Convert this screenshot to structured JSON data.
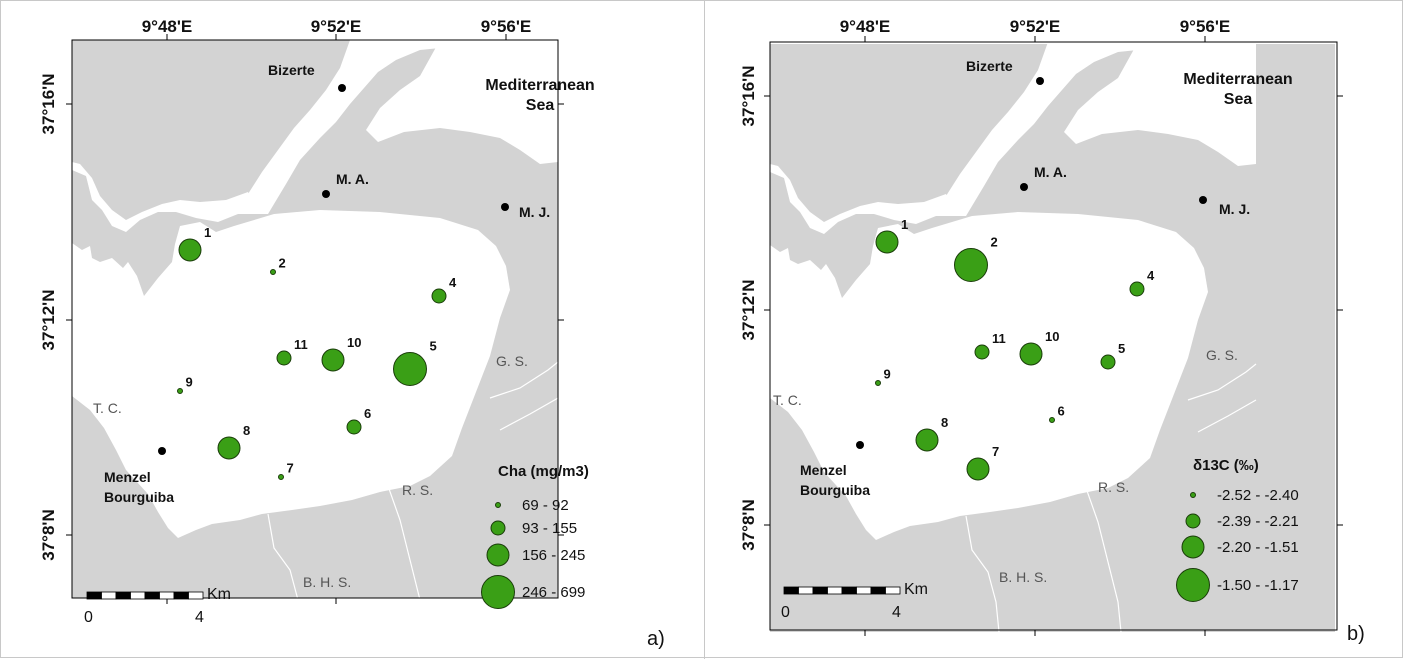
{
  "colors": {
    "land": "#d3d3d3",
    "water": "#ffffff",
    "circle_fill": "#3a9f16",
    "circle_stroke": "#1a3d0a",
    "town_dot": "#000000"
  },
  "panels": [
    {
      "id": "a",
      "panel_label": "a)",
      "lon_labels": [
        "9°48'E",
        "9°52'E",
        "9°56'E"
      ],
      "lat_labels": [
        "37°16'N",
        "37°12'N",
        "37°8'N"
      ],
      "places": [
        {
          "label": "Bizerte",
          "type": "town"
        },
        {
          "label": "M. A.",
          "type": "town"
        },
        {
          "label": "M. J.",
          "type": "town"
        },
        {
          "label": "Menzel\nBourguiba",
          "type": "town"
        },
        {
          "label": "Mediterranean\nSea",
          "type": "sea"
        },
        {
          "label": "G. S.",
          "type": "area"
        },
        {
          "label": "T. C.",
          "type": "area"
        },
        {
          "label": "R. S.",
          "type": "area"
        },
        {
          "label": "B. H. S.",
          "type": "area"
        }
      ],
      "stations": [
        {
          "id": "1",
          "class": 3
        },
        {
          "id": "2",
          "class": 1
        },
        {
          "id": "4",
          "class": 2
        },
        {
          "id": "5",
          "class": 4
        },
        {
          "id": "6",
          "class": 2
        },
        {
          "id": "7",
          "class": 1
        },
        {
          "id": "8",
          "class": 3
        },
        {
          "id": "9",
          "class": 1
        },
        {
          "id": "10",
          "class": 3
        },
        {
          "id": "11",
          "class": 2
        }
      ],
      "legend": {
        "title": "Cha (mg/m3)",
        "items": [
          {
            "class": 1,
            "label": "69 - 92"
          },
          {
            "class": 2,
            "label": "93 - 155"
          },
          {
            "class": 3,
            "label": "156 - 245"
          },
          {
            "class": 4,
            "label": "246 - 699"
          }
        ]
      },
      "scale": {
        "unit": "Km",
        "labels": [
          "0",
          "4"
        ]
      }
    },
    {
      "id": "b",
      "panel_label": "b)",
      "lon_labels": [
        "9°48'E",
        "9°52'E",
        "9°56'E"
      ],
      "lat_labels": [
        "37°16'N",
        "37°12'N",
        "37°8'N"
      ],
      "places": [
        {
          "label": "Bizerte",
          "type": "town"
        },
        {
          "label": "M. A.",
          "type": "town"
        },
        {
          "label": "M. J.",
          "type": "town"
        },
        {
          "label": "Menzel\nBourguiba",
          "type": "town"
        },
        {
          "label": "Mediterranean\nSea",
          "type": "sea"
        },
        {
          "label": "G. S.",
          "type": "area"
        },
        {
          "label": "T. C.",
          "type": "area"
        },
        {
          "label": "R. S.",
          "type": "area"
        },
        {
          "label": "B. H. S.",
          "type": "area"
        }
      ],
      "stations": [
        {
          "id": "1",
          "class": 3
        },
        {
          "id": "2",
          "class": 4
        },
        {
          "id": "4",
          "class": 2
        },
        {
          "id": "5",
          "class": 2
        },
        {
          "id": "6",
          "class": 1
        },
        {
          "id": "7",
          "class": 3
        },
        {
          "id": "8",
          "class": 3
        },
        {
          "id": "9",
          "class": 1
        },
        {
          "id": "10",
          "class": 3
        },
        {
          "id": "11",
          "class": 2
        }
      ],
      "legend": {
        "title": "δ13C (‰)",
        "items": [
          {
            "class": 1,
            "label": "-2.52 - -2.40"
          },
          {
            "class": 2,
            "label": "-2.39 - -2.21"
          },
          {
            "class": 3,
            "label": "-2.20 - -1.51"
          },
          {
            "class": 4,
            "label": "-1.50 - -1.17"
          }
        ]
      },
      "scale": {
        "unit": "Km",
        "labels": [
          "0",
          "4"
        ]
      }
    }
  ]
}
